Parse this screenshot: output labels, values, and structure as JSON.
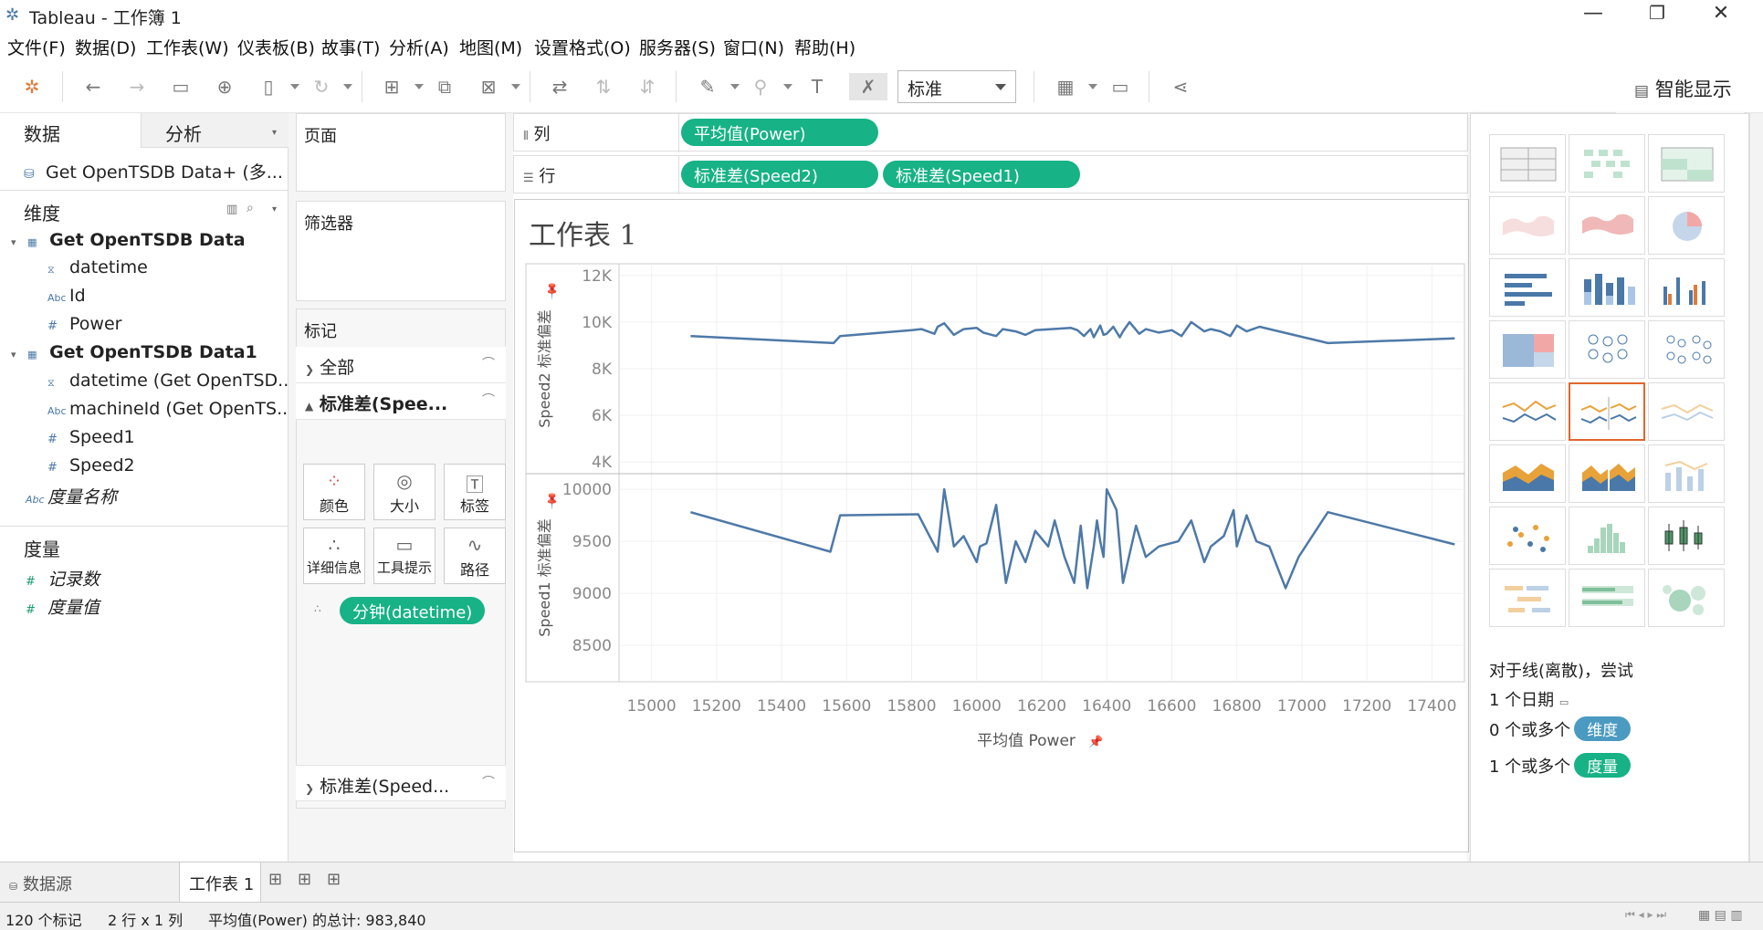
{
  "window": {
    "title": "Tableau - 工作簿 1",
    "minimize": "—",
    "restore": "❐",
    "close": "✕"
  },
  "menu": [
    "文件(F)",
    "数据(D)",
    "工作表(W)",
    "仪表板(B)",
    "故事(T)",
    "分析(A)",
    "地图(M)",
    "设置格式(O)",
    "服务器(S)",
    "窗口(N)",
    "帮助(H)"
  ],
  "toolbar": {
    "fit_value": "标准"
  },
  "data_pane": {
    "tabs": [
      "数据",
      "分析"
    ],
    "datasource": "Get OpenTSDB Data+ (多...",
    "dimensions_header": "维度",
    "tables": [
      {
        "name": "Get OpenTSDB Data",
        "fields": [
          {
            "type": "date",
            "name": "datetime"
          },
          {
            "type": "Abc",
            "name": "Id"
          },
          {
            "type": "#",
            "name": "Power"
          }
        ]
      },
      {
        "name": "Get OpenTSDB Data1",
        "fields": [
          {
            "type": "date",
            "name": "datetime (Get OpenTSD..."
          },
          {
            "type": "Abc",
            "name": "machineId (Get OpenTS..."
          },
          {
            "type": "#",
            "name": "Speed1"
          },
          {
            "type": "#",
            "name": "Speed2"
          }
        ]
      }
    ],
    "measure_names": "度量名称",
    "measures_header": "度量",
    "measures": [
      "记录数",
      "度量值"
    ],
    "abc_label": "Abc"
  },
  "cards": {
    "pages": "页面",
    "filters": "筛选器",
    "marks": "标记",
    "marks_all": "全部",
    "marks_speed2": "标准差(Spee...",
    "mark_type": "线",
    "buttons": [
      "颜色",
      "大小",
      "标签",
      "详细信息",
      "工具提示",
      "路径"
    ],
    "detail_pill": "分钟(datetime)",
    "marks_speed1": "标准差(Speed..."
  },
  "shelves": {
    "columns_label": "列",
    "rows_label": "行",
    "columns_pills": [
      "平均值(Power)"
    ],
    "rows_pills": [
      "标准差(Speed2)",
      "标准差(Speed1)"
    ]
  },
  "sheet": {
    "title": "工作表 1"
  },
  "chart_data": {
    "type": "line",
    "xlabel": "平均值 Power",
    "xlim": [
      14900,
      17500
    ],
    "x_ticks": [
      "15000",
      "15200",
      "15400",
      "15600",
      "15800",
      "16000",
      "16200",
      "16400",
      "16600",
      "16800",
      "17000",
      "17200",
      "17400"
    ],
    "panes": [
      {
        "ylabel": "Speed2 标准偏差",
        "ylim": [
          3500,
          12500
        ],
        "y_ticks": [
          "12K",
          "10K",
          "8K",
          "6K",
          "4K"
        ],
        "y_tick_values": [
          12000,
          10000,
          8000,
          6000,
          4000
        ],
        "x": [
          15120,
          15560,
          15580,
          15800,
          15830,
          15870,
          15880,
          15900,
          15930,
          15960,
          16000,
          16020,
          16060,
          16080,
          16120,
          16150,
          16180,
          16230,
          16290,
          16310,
          16330,
          16350,
          16360,
          16380,
          16390,
          16400,
          16420,
          16440,
          16450,
          16470,
          16500,
          16520,
          16560,
          16600,
          16630,
          16660,
          16700,
          16720,
          16750,
          16780,
          16800,
          16830,
          16870,
          17080,
          17470
        ],
        "y": [
          9400,
          9100,
          9400,
          9650,
          9700,
          9500,
          9800,
          9950,
          9450,
          9700,
          9750,
          9550,
          9400,
          9700,
          9600,
          9450,
          9650,
          9700,
          9750,
          9650,
          9400,
          9700,
          9350,
          9850,
          9450,
          9500,
          9800,
          9350,
          9600,
          10000,
          9500,
          9700,
          9550,
          9650,
          9400,
          10000,
          9600,
          9700,
          9600,
          9400,
          9850,
          9600,
          9800,
          9100,
          9300
        ]
      },
      {
        "ylabel": "Speed1 标准偏差",
        "ylim": [
          8150,
          10150
        ],
        "y_ticks": [
          "10000",
          "9500",
          "9000",
          "8500"
        ],
        "y_tick_values": [
          10000,
          9500,
          9000,
          8500
        ],
        "x": [
          15120,
          15550,
          15580,
          15820,
          15880,
          15900,
          15930,
          15960,
          16000,
          16010,
          16030,
          16060,
          16090,
          16120,
          16150,
          16180,
          16220,
          16240,
          16270,
          16300,
          16320,
          16340,
          16360,
          16370,
          16380,
          16390,
          16400,
          16430,
          16450,
          16490,
          16520,
          16560,
          16620,
          16660,
          16700,
          16720,
          16760,
          16790,
          16800,
          16830,
          16860,
          16900,
          16950,
          16990,
          17080,
          17470
        ],
        "y": [
          9780,
          9400,
          9750,
          9760,
          9400,
          10000,
          9450,
          9550,
          9300,
          9450,
          9480,
          9850,
          9100,
          9500,
          9300,
          9600,
          9450,
          9700,
          9350,
          9100,
          9650,
          9050,
          9450,
          9700,
          9500,
          9350,
          10000,
          9800,
          9100,
          9650,
          9350,
          9450,
          9500,
          9700,
          9300,
          9450,
          9550,
          9800,
          9450,
          9750,
          9500,
          9450,
          9050,
          9350,
          9780,
          9470
        ]
      }
    ]
  },
  "showme": {
    "tab_label": "智能显示",
    "hint_line1": "对于线(离散)，尝试",
    "hint_line2": "1 个日期",
    "hint_line3_prefix": "0 个或多个",
    "hint_line3_pill": "维度",
    "hint_line4_prefix": "1 个或多个",
    "hint_line4_pill": "度量",
    "colors": {
      "dimension": "#4b9ac1",
      "measure": "#17b286",
      "selected": "#e2652c"
    }
  },
  "bottom_tabs": {
    "datasource": "数据源",
    "sheet": "工作表 1"
  },
  "status": {
    "marks": "120 个标记",
    "rows_cols": "2 行 x 1 列",
    "sum": "平均值(Power) 的总计: 983,840"
  }
}
